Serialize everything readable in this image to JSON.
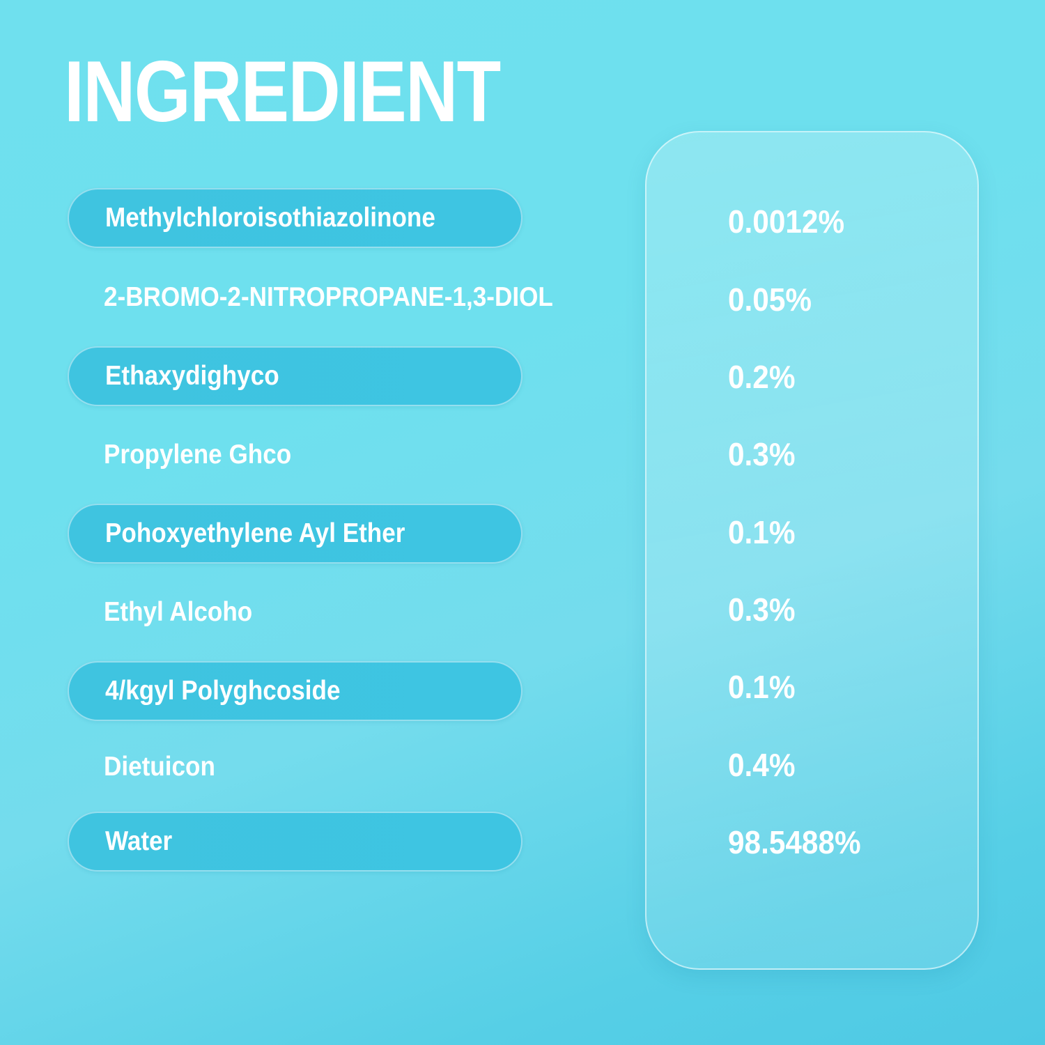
{
  "title": "INGREDIENT",
  "ingredients": [
    {
      "name": "Methylchloroisothiazolinone",
      "percent": "0.0012%",
      "highlighted": true
    },
    {
      "name": "2-BROMO-2-NITROPROPANE-1,3-DIOL",
      "percent": "0.05%",
      "highlighted": false
    },
    {
      "name": "Ethaxydighyco",
      "percent": "0.2%",
      "highlighted": true
    },
    {
      "name": "Propylene Ghco",
      "percent": "0.3%",
      "highlighted": false
    },
    {
      "name": "Pohoxyethylene Ayl Ether",
      "percent": "0.1%",
      "highlighted": true
    },
    {
      "name": "Ethyl Alcoho",
      "percent": "0.3%",
      "highlighted": false
    },
    {
      "name": "4/kgyl Polyghcoside",
      "percent": "0.1%",
      "highlighted": true
    },
    {
      "name": "Dietuicon",
      "percent": "0.4%",
      "highlighted": false
    },
    {
      "name": "Water",
      "percent": "98.5488%",
      "highlighted": true
    }
  ],
  "colors": {
    "pill": "#3fc4e0",
    "background": "#6fe0ee",
    "text": "#ffffff"
  }
}
